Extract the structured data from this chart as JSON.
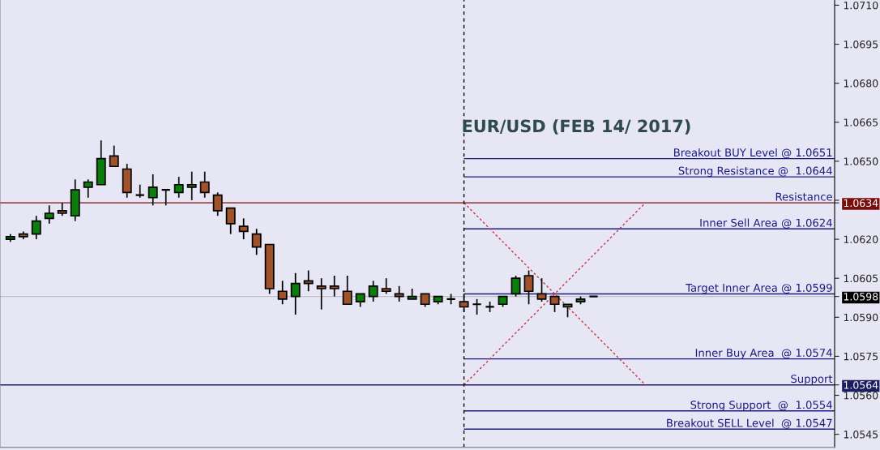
{
  "chart_data": {
    "type": "candlestick",
    "title": "EUR/USD (FEB 14/ 2017)",
    "categories": [
      null,
      null,
      null,
      null,
      null,
      null,
      null,
      null,
      null,
      null,
      null,
      null,
      null,
      null,
      null,
      null,
      null,
      null,
      null,
      null,
      null,
      null,
      null,
      null,
      null,
      null,
      null,
      null,
      null,
      null,
      null,
      null,
      null,
      null,
      null,
      null,
      null,
      null,
      null,
      null,
      null,
      null,
      null,
      null,
      null,
      null,
      null,
      null,
      null,
      null,
      null,
      null,
      null,
      null,
      null,
      null,
      null,
      null,
      null,
      null,
      null,
      null,
      null,
      null
    ],
    "series": [
      {
        "type": "line",
        "values": [
          null,
          null,
          null,
          null,
          null,
          null,
          null,
          null,
          null,
          null,
          null,
          null,
          null,
          null,
          null,
          null,
          null,
          null,
          null,
          null,
          null,
          null,
          null,
          null,
          null,
          null,
          null,
          null,
          null,
          null,
          null,
          null,
          null,
          null,
          null,
          1.0634,
          null,
          null,
          null,
          null,
          null,
          null,
          null,
          null,
          null,
          null,
          null,
          null,
          null,
          1.0564,
          null,
          null,
          null,
          null,
          null,
          null,
          null,
          null,
          null,
          null,
          null,
          null,
          null,
          null
        ],
        "color": "#cc3344",
        "line_style": "dotted"
      },
      {
        "type": "line",
        "values": [
          null,
          null,
          null,
          null,
          null,
          null,
          null,
          null,
          null,
          null,
          null,
          null,
          null,
          null,
          null,
          null,
          null,
          null,
          null,
          null,
          null,
          null,
          null,
          null,
          null,
          null,
          null,
          null,
          null,
          null,
          null,
          null,
          null,
          null,
          null,
          1.0564,
          null,
          null,
          null,
          null,
          null,
          null,
          null,
          null,
          null,
          null,
          null,
          null,
          null,
          1.0634,
          null,
          null,
          null,
          null,
          null,
          null,
          null,
          null,
          null,
          null,
          null,
          null,
          null,
          null
        ],
        "color": "#cc3344",
        "line_style": "dotted"
      }
    ],
    "ohlc": [
      [
        1.062,
        1.0622,
        1.0619,
        1.0621
      ],
      [
        1.0622,
        1.0623,
        1.062,
        1.0621
      ],
      [
        1.0622,
        1.0629,
        1.062,
        1.0627
      ],
      [
        1.0628,
        1.0633,
        1.0626,
        1.063
      ],
      [
        1.0631,
        1.0634,
        1.0629,
        1.063
      ],
      [
        1.0629,
        1.0643,
        1.0627,
        1.0639
      ],
      [
        1.064,
        1.0643,
        1.0636,
        1.0642
      ],
      [
        1.0641,
        1.0658,
        1.0641,
        1.0651
      ],
      [
        1.0652,
        1.0656,
        1.0648,
        1.0648
      ],
      [
        1.0647,
        1.0649,
        1.0636,
        1.0638
      ],
      [
        1.0637,
        1.0641,
        1.0636,
        1.0637
      ],
      [
        1.0636,
        1.0645,
        1.0633,
        1.064
      ],
      [
        1.0639,
        1.0639,
        1.0633,
        1.0639
      ],
      [
        1.0638,
        1.0644,
        1.0636,
        1.0641
      ],
      [
        1.064,
        1.0646,
        1.0635,
        1.0641
      ],
      [
        1.0642,
        1.0646,
        1.0636,
        1.0638
      ],
      [
        1.0637,
        1.0638,
        1.0629,
        1.0631
      ],
      [
        1.0632,
        1.0632,
        1.0622,
        1.0626
      ],
      [
        1.0625,
        1.0628,
        1.062,
        1.0623
      ],
      [
        1.0622,
        1.0624,
        1.0614,
        1.0617
      ],
      [
        1.0618,
        1.0618,
        1.0599,
        1.0601
      ],
      [
        1.06,
        1.0604,
        1.0595,
        1.0597
      ],
      [
        1.0598,
        1.0607,
        1.0591,
        1.0603
      ],
      [
        1.0604,
        1.0608,
        1.06,
        1.0603
      ],
      [
        1.0602,
        1.0605,
        1.0593,
        1.0601
      ],
      [
        1.0602,
        1.0606,
        1.0598,
        1.0601
      ],
      [
        1.06,
        1.0606,
        1.0595,
        1.0595
      ],
      [
        1.0596,
        1.0599,
        1.0594,
        1.0599
      ],
      [
        1.0598,
        1.0604,
        1.0596,
        1.0602
      ],
      [
        1.0601,
        1.0605,
        1.0599,
        1.06
      ],
      [
        1.0599,
        1.0602,
        1.0596,
        1.0598
      ],
      [
        1.0597,
        1.0601,
        1.0597,
        1.0598
      ],
      [
        1.0599,
        1.0599,
        1.0594,
        1.0595
      ],
      [
        1.0596,
        1.0598,
        1.0595,
        1.0598
      ],
      [
        1.0597,
        1.0599,
        1.0595,
        1.0597
      ],
      [
        1.0596,
        1.0599,
        1.0592,
        1.0594
      ],
      [
        1.0595,
        1.0597,
        1.0591,
        1.0595
      ],
      [
        1.0594,
        1.0596,
        1.0592,
        1.0594
      ],
      [
        1.0595,
        1.0598,
        1.0594,
        1.0598
      ],
      [
        1.0599,
        1.0606,
        1.0598,
        1.0605
      ],
      [
        1.0606,
        1.0608,
        1.0595,
        1.06
      ],
      [
        1.0599,
        1.0605,
        1.0596,
        1.0597
      ],
      [
        1.0598,
        1.0598,
        1.0592,
        1.0595
      ],
      [
        1.0594,
        1.0595,
        1.059,
        1.0595
      ],
      [
        1.0596,
        1.0598,
        1.0595,
        1.0597
      ],
      [
        1.0598,
        1.0598,
        1.0598,
        1.0598
      ],
      null,
      null,
      null,
      null,
      null,
      null,
      null,
      null,
      null,
      null,
      null,
      null,
      null,
      null,
      null,
      null,
      null,
      null
    ],
    "colors": [
      "#0a7d0a",
      "#a0522d",
      "#0a7d0a",
      "#0a7d0a",
      "#a0522d",
      "#0a7d0a",
      "#0a7d0a",
      "#0a7d0a",
      "#a0522d",
      "#a0522d",
      "#000000",
      "#0a7d0a",
      "#000000",
      "#0a7d0a",
      "#2f6f2f",
      "#a0522d",
      "#a0522d",
      "#a0522d",
      "#a0522d",
      "#a0522d",
      "#a0522d",
      "#a0522d",
      "#0a7d0a",
      "#a0522d",
      "#a0522d",
      "#a0522d",
      "#a0522d",
      "#0a7d0a",
      "#0a7d0a",
      "#a0522d",
      "#a0522d",
      "#2f6f2f",
      "#a0522d",
      "#0a7d0a",
      "#000000",
      "#a0522d",
      "#000000",
      "#000000",
      "#0a7d0a",
      "#0a7d0a",
      "#a0522d",
      "#a0522d",
      "#a0522d",
      "#2f6f2f",
      "#2f6f2f",
      "#000000",
      null,
      null,
      null,
      null,
      null,
      null,
      null,
      null,
      null,
      null,
      null,
      null,
      null,
      null,
      null,
      null,
      null,
      null
    ],
    "ylim": [
      1.054,
      1.0712
    ],
    "yticks": [
      1.0545,
      {
        "value": 1.056,
        "label": "1.0560"
      },
      1.0575,
      {
        "value": 1.059,
        "label": "1.0590"
      },
      1.0605,
      {
        "value": 1.062,
        "label": "1.0620"
      },
      {
        "value": 1.0635,
        "label": null
      },
      {
        "value": 1.065,
        "label": "1.0650"
      },
      1.0665,
      {
        "value": 1.068,
        "label": "1.0680"
      },
      1.0695,
      {
        "value": 1.071,
        "label": "1.0710"
      },
      {
        "value": 1.0634,
        "label": "1.0634"
      },
      {
        "value": 1.0598,
        "label": "1.0598"
      },
      {
        "value": 1.0564,
        "label": "1.0564"
      }
    ],
    "ref_lines": [
      {
        "axis": "y",
        "value": 1.0651,
        "label": "Breakout BUY Level @ 1.0651",
        "color": "#1c1c80"
      },
      {
        "axis": "y",
        "value": 1.0644,
        "label": "Strong Resistance @  1.0644",
        "color": "#1c1c80"
      },
      {
        "axis": "y",
        "value": 1.0634,
        "label": "Resistance",
        "color": "#7b0d0d"
      },
      {
        "axis": "y",
        "value": 1.0624,
        "label": "Inner Sell Area @ 1.0624",
        "color": "#1c1c80"
      },
      {
        "axis": "y",
        "value": 1.0599,
        "label": "Target Inner Area @ 1.0599",
        "color": "#1c1c80"
      },
      {
        "axis": "y",
        "value": 1.0598,
        "color": "#c0c0c0"
      },
      {
        "axis": "y",
        "value": 1.0574,
        "label": "Inner Buy Area  @ 1.0574",
        "color": "#1c1c80"
      },
      {
        "axis": "y",
        "value": 1.0564,
        "label": "Support",
        "color": "#1c1c60"
      },
      {
        "axis": "y",
        "value": 1.0554,
        "label": "Strong Support  @  1.0554",
        "color": "#1c1c80"
      },
      {
        "axis": "y",
        "value": 1.0547,
        "label": "Breakout SELL Level  @ 1.0547",
        "color": "#1c1c80"
      }
    ],
    "grid": false
  }
}
